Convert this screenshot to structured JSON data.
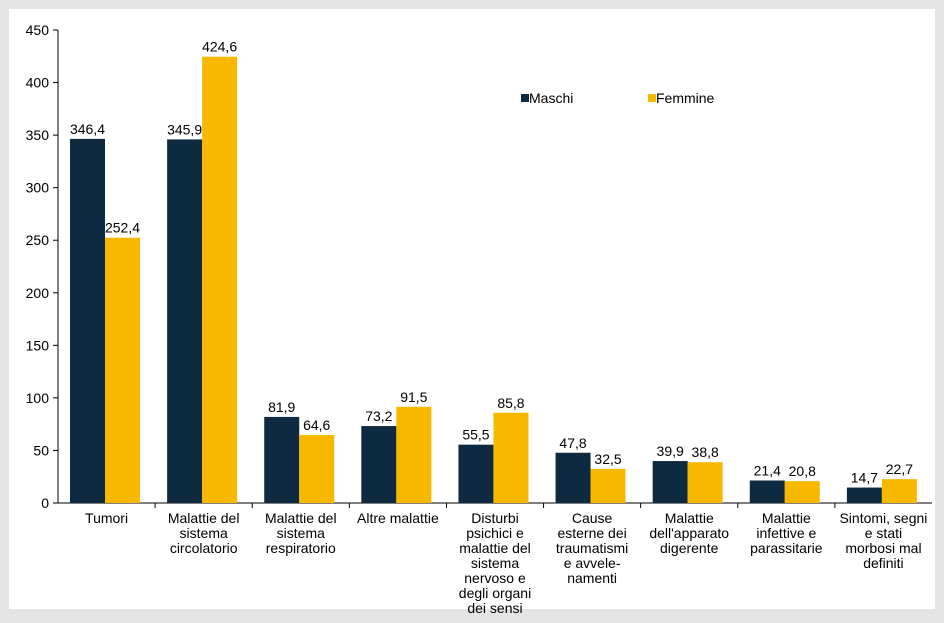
{
  "chart_data": {
    "type": "bar",
    "categories": [
      [
        "Tumori"
      ],
      [
        "Malattie del",
        "sistema",
        "circolatorio"
      ],
      [
        "Malattie del",
        "sistema",
        "respiratorio"
      ],
      [
        "Altre malattie"
      ],
      [
        "Disturbi",
        "psichici e",
        "malattie del",
        "sistema",
        "nervoso e",
        "degli organi",
        "dei sensi"
      ],
      [
        "Cause",
        "esterne dei",
        "traumatismi",
        "e avvele-",
        "namenti"
      ],
      [
        "Malattie",
        "dell'apparato",
        "digerente"
      ],
      [
        "Malattie",
        "infettive e",
        "parassitarie"
      ],
      [
        "Sintomi, segni",
        "e stati",
        "morbosi mal",
        "definiti"
      ]
    ],
    "series": [
      {
        "name": "Maschi",
        "color": "#0d2a40",
        "values": [
          346.4,
          345.9,
          81.9,
          73.2,
          55.5,
          47.8,
          39.9,
          21.4,
          14.7
        ],
        "labels": [
          "346,4",
          "345,9",
          "81,9",
          "73,2",
          "55,5",
          "47,8",
          "39,9",
          "21,4",
          "14,7"
        ]
      },
      {
        "name": "Femmine",
        "color": "#f8b800",
        "values": [
          252.4,
          424.6,
          64.6,
          91.5,
          85.8,
          32.5,
          38.8,
          20.8,
          22.7
        ],
        "labels": [
          "252,4",
          "424,6",
          "64,6",
          "91,5",
          "85,8",
          "32,5",
          "38,8",
          "20,8",
          "22,7"
        ]
      }
    ],
    "ylim": [
      0,
      450
    ],
    "yticks": [
      0,
      50,
      100,
      150,
      200,
      250,
      300,
      350,
      400,
      450
    ],
    "ytick_labels": [
      "0",
      "50",
      "100",
      "150",
      "200",
      "250",
      "300",
      "350",
      "400",
      "450"
    ],
    "grid": false,
    "legend_position": "top-right",
    "title": "",
    "xlabel": "",
    "ylabel": ""
  }
}
